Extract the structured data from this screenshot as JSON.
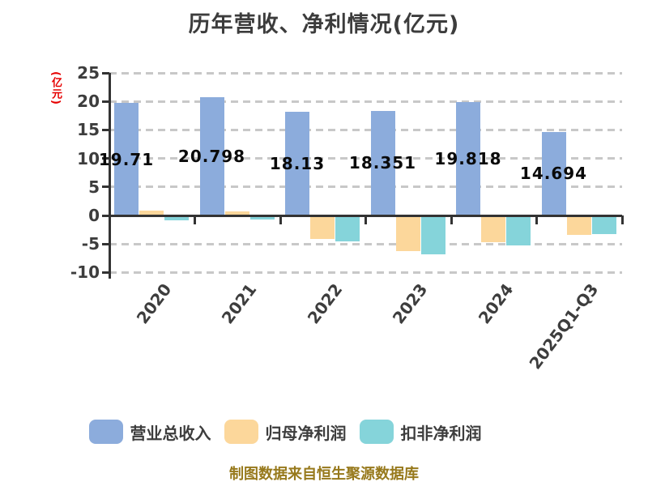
{
  "title": "历年营收、净利情况(亿元)",
  "footer": "制图数据来自恒生聚源数据库",
  "chart_data": {
    "type": "bar",
    "title": "历年营收、净利情况(亿元)",
    "xlabel": "",
    "ylabel": "(亿元)",
    "categories": [
      "2020",
      "2021",
      "2022",
      "2023",
      "2024",
      "2025Q1-Q3"
    ],
    "series": [
      {
        "name": "营业总收入",
        "color": "#8cacdc",
        "values": [
          19.71,
          20.798,
          18.13,
          18.351,
          19.818,
          14.694
        ],
        "data_labels": [
          "19.71",
          "20.798",
          "18.13",
          "18.351",
          "19.818",
          "14.694"
        ]
      },
      {
        "name": "归母净利润",
        "color": "#fcd79b",
        "values": [
          0.9,
          0.65,
          -4.1,
          -6.2,
          -4.75,
          -3.4
        ],
        "data_labels": null
      },
      {
        "name": "扣非净利润",
        "color": "#85d4da",
        "values": [
          -0.8,
          -0.7,
          -4.6,
          -6.8,
          -5.3,
          -3.2
        ],
        "data_labels": null
      }
    ],
    "ylim": [
      -10,
      25
    ],
    "yticks": [
      25,
      20,
      15,
      10,
      5,
      0,
      -5,
      -10
    ],
    "grid": "horizontal dashed gray",
    "legend_position": "bottom",
    "value_label_placement": "middle of revenue bars only",
    "xtick_rotation_deg": -53
  },
  "colors": {
    "background": "#ffffff",
    "axis": "#333333",
    "grid": "#c8c8c8",
    "tick_label": "#3d3d3d",
    "title": "#3c3c3c",
    "value_label": "#0a0a0a",
    "ylabel_unit": "#e60000",
    "footer": "#97791c"
  }
}
